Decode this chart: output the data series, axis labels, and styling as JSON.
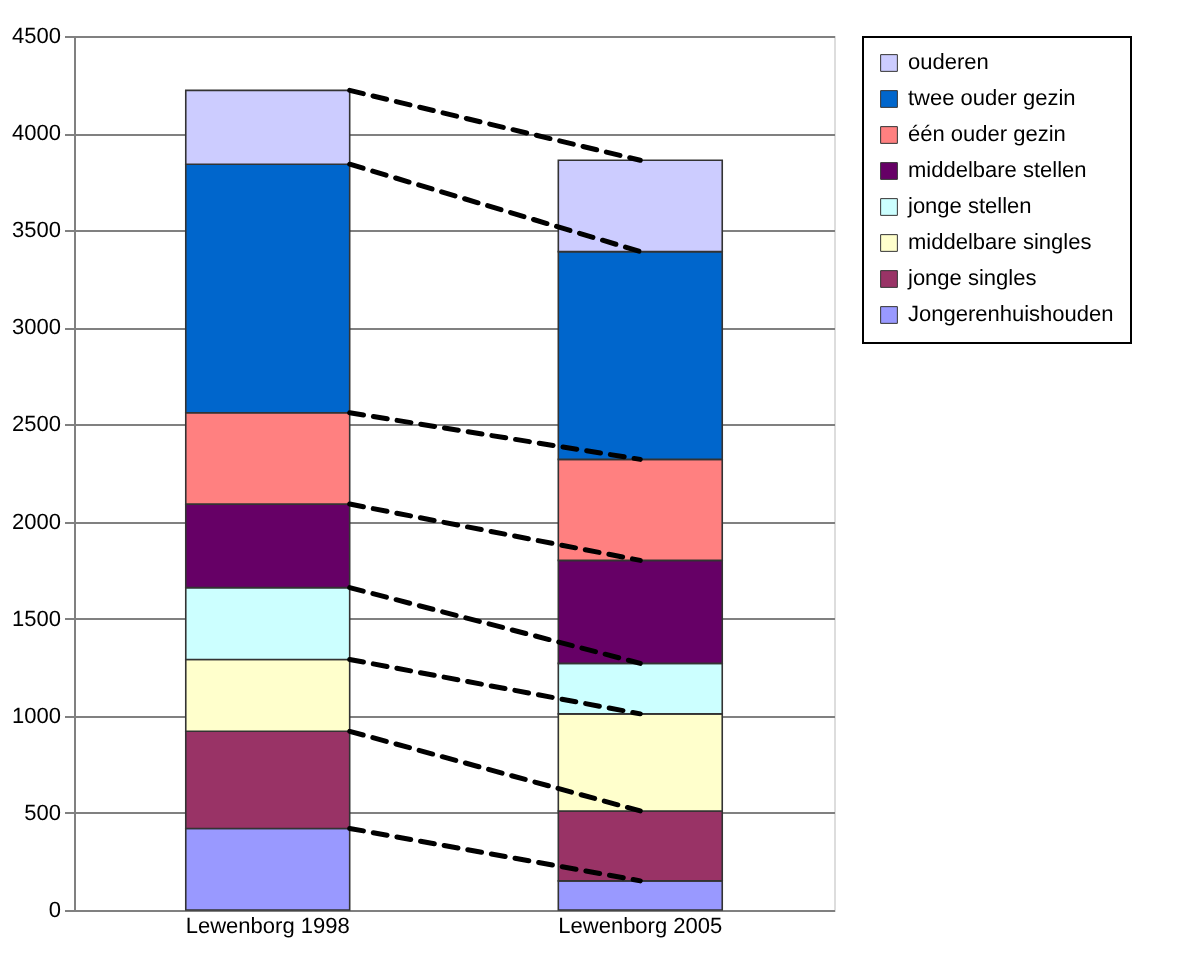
{
  "chart_data": {
    "type": "bar",
    "stacked": true,
    "categories": [
      "Lewenborg 1998",
      "Lewenborg 2005"
    ],
    "series": [
      {
        "name": "Jongerenhuishouden",
        "color": "#9999ff",
        "values": [
          420,
          150
        ]
      },
      {
        "name": "jonge singles",
        "color": "#993366",
        "values": [
          500,
          360
        ]
      },
      {
        "name": "middelbare singles",
        "color": "#ffffcc",
        "values": [
          370,
          500
        ]
      },
      {
        "name": "jonge stellen",
        "color": "#ccffff",
        "values": [
          370,
          260
        ]
      },
      {
        "name": "middelbare  stellen",
        "color": "#660066",
        "values": [
          430,
          530
        ]
      },
      {
        "name": "één ouder gezin",
        "color": "#ff8080",
        "values": [
          470,
          520
        ]
      },
      {
        "name": "twee ouder gezin",
        "color": "#0066cc",
        "values": [
          1280,
          1070
        ]
      },
      {
        "name": "ouderen",
        "color": "#ccccff",
        "values": [
          380,
          470
        ]
      }
    ],
    "ylim": [
      0,
      4500
    ],
    "yticks": [
      0,
      500,
      1000,
      1500,
      2000,
      2500,
      3000,
      3500,
      4000,
      4500
    ],
    "grid": "y",
    "legend": "right"
  }
}
